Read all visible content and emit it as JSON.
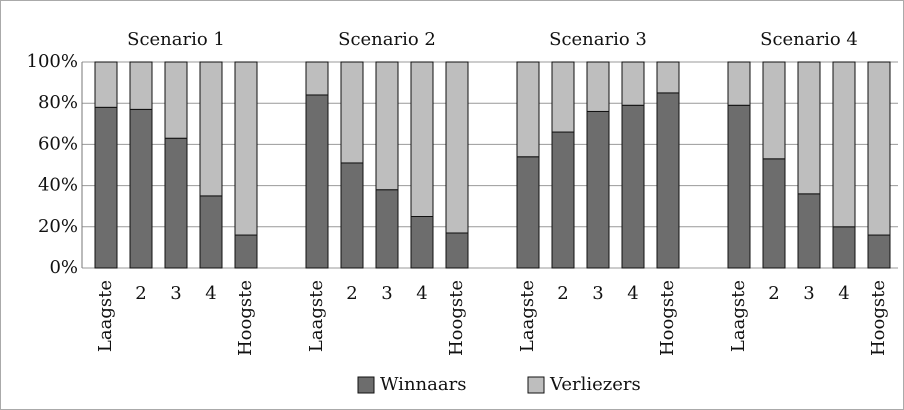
{
  "chart_data": {
    "type": "bar",
    "stacked": true,
    "ylim": [
      0,
      100
    ],
    "yticks": [
      {
        "value": 0,
        "label": "0%"
      },
      {
        "value": 20,
        "label": "20%"
      },
      {
        "value": 40,
        "label": "40%"
      },
      {
        "value": 60,
        "label": "60%"
      },
      {
        "value": 80,
        "label": "80%"
      },
      {
        "value": 100,
        "label": "100%"
      }
    ],
    "grid": true,
    "legend": "bottom",
    "series": [
      {
        "name": "Winnaars",
        "color": "#6d6d6d"
      },
      {
        "name": "Verliezers",
        "color": "#bebebe"
      }
    ],
    "panels": [
      {
        "title": "Scenario 1",
        "categories": [
          "Laagste",
          "2",
          "3",
          "4",
          "Hoogste"
        ],
        "series": [
          {
            "values": [
              78,
              77,
              63,
              35,
              16
            ]
          },
          {
            "values": [
              22,
              23,
              37,
              65,
              84
            ]
          }
        ]
      },
      {
        "title": "Scenario 2",
        "categories": [
          "Laagste",
          "2",
          "3",
          "4",
          "Hoogste"
        ],
        "series": [
          {
            "values": [
              84,
              51,
              38,
              25,
              17
            ]
          },
          {
            "values": [
              16,
              49,
              62,
              75,
              83
            ]
          }
        ]
      },
      {
        "title": "Scenario 3",
        "categories": [
          "Laagste",
          "2",
          "3",
          "4",
          "Hoogste"
        ],
        "series": [
          {
            "values": [
              54,
              66,
              76,
              79,
              85
            ]
          },
          {
            "values": [
              46,
              34,
              24,
              21,
              15
            ]
          }
        ]
      },
      {
        "title": "Scenario 4",
        "categories": [
          "Laagste",
          "2",
          "3",
          "4",
          "Hoogste"
        ],
        "series": [
          {
            "values": [
              79,
              53,
              36,
              20,
              16
            ]
          },
          {
            "values": [
              21,
              47,
              64,
              80,
              84
            ]
          }
        ]
      }
    ]
  }
}
